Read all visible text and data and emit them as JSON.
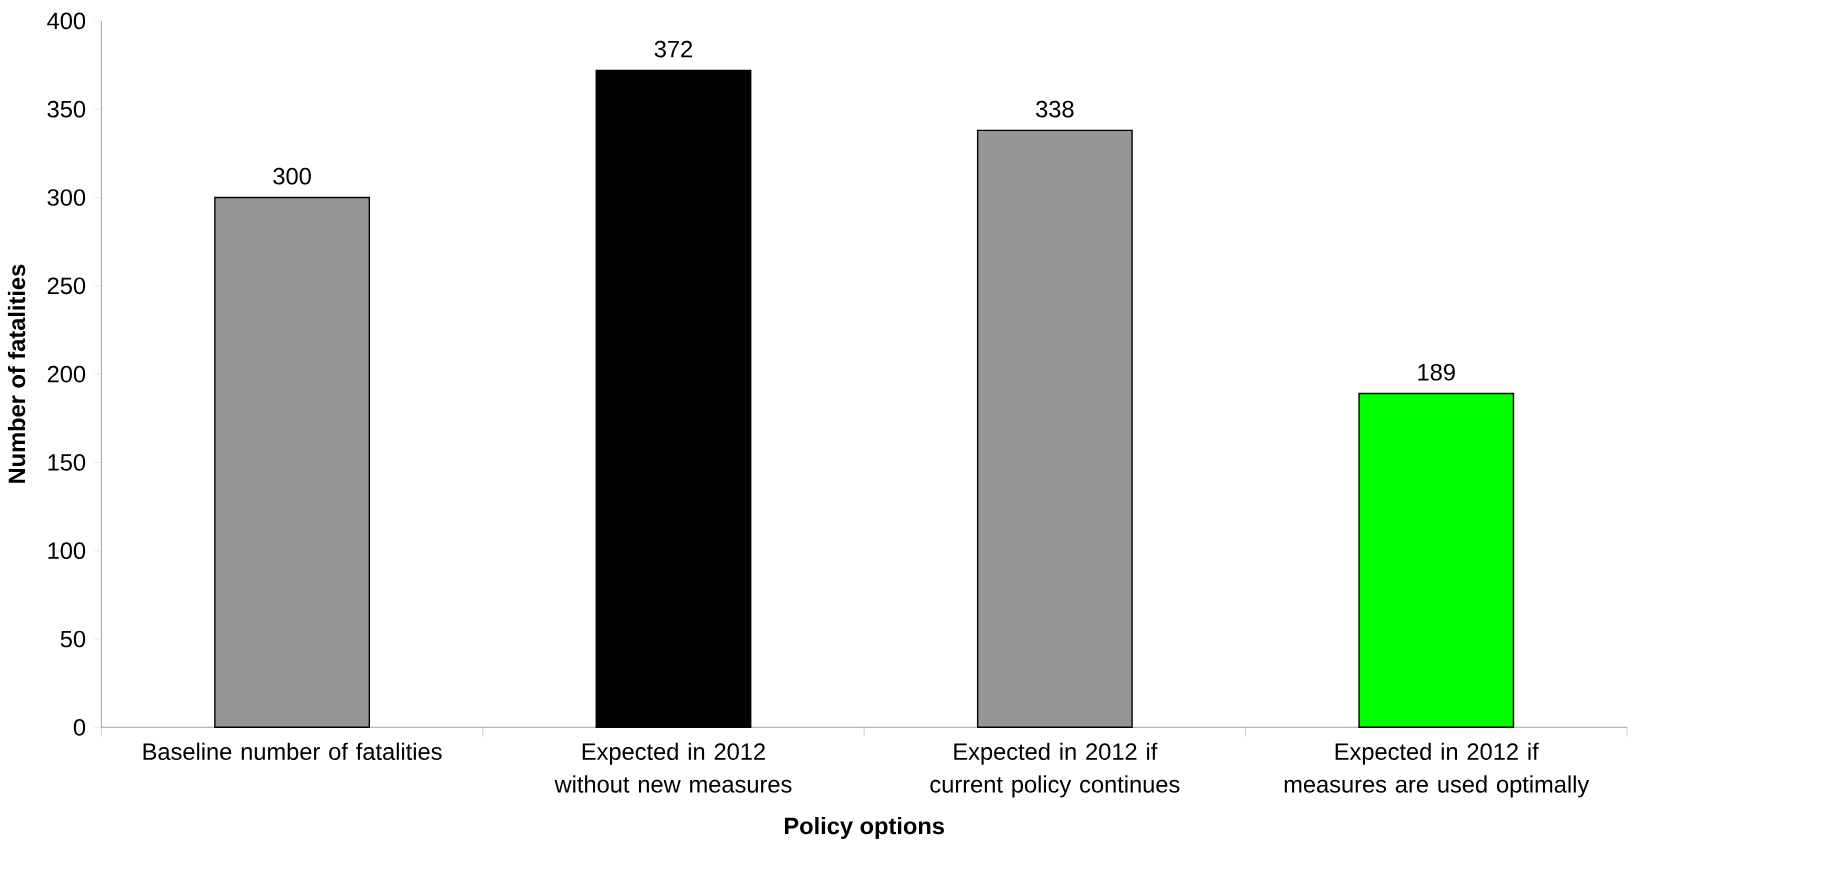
{
  "chart_data": {
    "type": "bar",
    "xlabel": "Policy options",
    "ylabel": "Number of fatalities",
    "categories": [
      "Baseline number of fatalities",
      "Expected in 2012 without new measures",
      "Expected in 2012 if current policy continues",
      "Expected in 2012 if measures are used optimally"
    ],
    "values": [
      300,
      372,
      338,
      189
    ],
    "colors": [
      "#969696",
      "#000000",
      "#969696",
      "#00ff00"
    ],
    "ylim": [
      0,
      400
    ],
    "yticks": [
      0,
      50,
      100,
      150,
      200,
      250,
      300,
      350,
      400
    ],
    "data_labels": true,
    "grid": false
  }
}
